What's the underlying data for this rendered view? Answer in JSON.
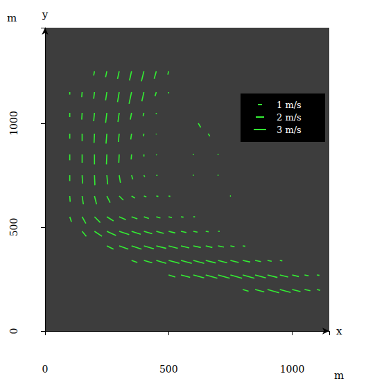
{
  "chart_data": {
    "type": "quiver",
    "x_label": "x",
    "y_label": "y",
    "x_unit": "m",
    "y_unit": "m",
    "xlim": [
      0,
      1150
    ],
    "ylim": [
      0,
      1460
    ],
    "xticks": [
      0,
      500,
      1000
    ],
    "yticks": [
      0,
      500,
      1000
    ],
    "grid": false,
    "color": "#33ee33",
    "scale_key": [
      {
        "label": "1 m/s",
        "value": 1
      },
      {
        "label": "2 m/s",
        "value": 2
      },
      {
        "label": "3 m/s",
        "value": 3
      }
    ],
    "vectors": [
      [
        200,
        1250,
        -0.2,
        -1.0
      ],
      [
        250,
        1250,
        -0.3,
        -1.4
      ],
      [
        300,
        1250,
        -0.4,
        -1.8
      ],
      [
        350,
        1250,
        -0.5,
        -2.2
      ],
      [
        400,
        1250,
        -0.6,
        -2.4
      ],
      [
        450,
        1250,
        -0.5,
        -1.8
      ],
      [
        500,
        1250,
        -0.2,
        -0.8
      ],
      [
        100,
        1150,
        0,
        -0.6
      ],
      [
        150,
        1150,
        -0.1,
        -1.2
      ],
      [
        200,
        1150,
        -0.2,
        -1.6
      ],
      [
        250,
        1150,
        -0.3,
        -2.0
      ],
      [
        300,
        1150,
        -0.4,
        -2.4
      ],
      [
        350,
        1150,
        -0.6,
        -2.8
      ],
      [
        400,
        1150,
        -0.5,
        -2.2
      ],
      [
        450,
        1150,
        -0.3,
        -1.0
      ],
      [
        500,
        1150,
        0,
        -0.3
      ],
      [
        100,
        1050,
        0,
        -1.0
      ],
      [
        150,
        1050,
        -0.1,
        -1.6
      ],
      [
        200,
        1050,
        -0.2,
        -2.0
      ],
      [
        250,
        1050,
        -0.3,
        -2.4
      ],
      [
        300,
        1050,
        -0.3,
        -2.2
      ],
      [
        350,
        1050,
        -0.3,
        -1.6
      ],
      [
        400,
        1050,
        -0.2,
        -0.8
      ],
      [
        450,
        1050,
        0,
        -0.3
      ],
      [
        100,
        950,
        0,
        -1.2
      ],
      [
        150,
        950,
        0,
        -1.8
      ],
      [
        200,
        950,
        -0.1,
        -2.2
      ],
      [
        250,
        950,
        -0.2,
        -2.4
      ],
      [
        300,
        950,
        -0.2,
        -2.0
      ],
      [
        350,
        950,
        -0.2,
        -1.4
      ],
      [
        400,
        950,
        -0.1,
        -0.6
      ],
      [
        450,
        950,
        0,
        -0.2
      ],
      [
        100,
        850,
        0,
        -1.4
      ],
      [
        150,
        850,
        0,
        -2.0
      ],
      [
        200,
        850,
        0,
        -2.4
      ],
      [
        250,
        850,
        -0.1,
        -2.4
      ],
      [
        300,
        850,
        -0.1,
        -2.0
      ],
      [
        350,
        850,
        -0.1,
        -1.2
      ],
      [
        400,
        850,
        0,
        -0.5
      ],
      [
        450,
        850,
        0.1,
        -0.2
      ],
      [
        100,
        750,
        0,
        -1.4
      ],
      [
        150,
        750,
        0.1,
        -2.0
      ],
      [
        200,
        750,
        0.1,
        -2.4
      ],
      [
        250,
        750,
        0.2,
        -2.2
      ],
      [
        300,
        750,
        0.3,
        -1.8
      ],
      [
        350,
        750,
        0.3,
        -1.0
      ],
      [
        400,
        750,
        0.2,
        -0.4
      ],
      [
        450,
        750,
        0.3,
        -0.1
      ],
      [
        100,
        650,
        0.1,
        -1.4
      ],
      [
        150,
        650,
        0.3,
        -2.0
      ],
      [
        200,
        650,
        0.5,
        -2.0
      ],
      [
        250,
        650,
        0.8,
        -1.6
      ],
      [
        300,
        650,
        1.0,
        -1.0
      ],
      [
        350,
        650,
        0.8,
        -0.5
      ],
      [
        400,
        650,
        0.6,
        -0.2
      ],
      [
        450,
        650,
        0.5,
        -0.1
      ],
      [
        500,
        650,
        0.4,
        -0.1
      ],
      [
        100,
        550,
        0.4,
        -1.2
      ],
      [
        150,
        550,
        0.9,
        -1.6
      ],
      [
        200,
        550,
        1.4,
        -1.4
      ],
      [
        250,
        550,
        1.6,
        -1.0
      ],
      [
        300,
        550,
        1.6,
        -0.7
      ],
      [
        350,
        550,
        1.4,
        -0.5
      ],
      [
        400,
        550,
        1.2,
        -0.4
      ],
      [
        450,
        550,
        1.0,
        -0.3
      ],
      [
        500,
        550,
        0.8,
        -0.2
      ],
      [
        550,
        550,
        0.6,
        -0.1
      ],
      [
        600,
        550,
        0.4,
        0
      ],
      [
        150,
        480,
        1.0,
        -1.2
      ],
      [
        200,
        480,
        1.8,
        -1.2
      ],
      [
        250,
        480,
        2.2,
        -1.0
      ],
      [
        300,
        480,
        2.4,
        -0.8
      ],
      [
        350,
        480,
        2.2,
        -0.7
      ],
      [
        400,
        480,
        2.0,
        -0.6
      ],
      [
        450,
        480,
        1.8,
        -0.5
      ],
      [
        500,
        480,
        1.6,
        -0.4
      ],
      [
        550,
        480,
        1.3,
        -0.3
      ],
      [
        600,
        480,
        1.0,
        -0.2
      ],
      [
        650,
        480,
        0.7,
        -0.1
      ],
      [
        700,
        480,
        0.4,
        0
      ],
      [
        250,
        410,
        1.6,
        -0.8
      ],
      [
        300,
        410,
        2.2,
        -0.8
      ],
      [
        350,
        410,
        2.4,
        -0.8
      ],
      [
        400,
        410,
        2.4,
        -0.7
      ],
      [
        450,
        410,
        2.4,
        -0.6
      ],
      [
        500,
        410,
        2.2,
        -0.6
      ],
      [
        550,
        410,
        2.0,
        -0.5
      ],
      [
        600,
        410,
        1.8,
        -0.4
      ],
      [
        650,
        410,
        1.6,
        -0.4
      ],
      [
        700,
        410,
        1.4,
        -0.3
      ],
      [
        750,
        410,
        1.0,
        -0.2
      ],
      [
        800,
        410,
        0.6,
        -0.1
      ],
      [
        350,
        340,
        1.4,
        -0.5
      ],
      [
        400,
        340,
        2.0,
        -0.6
      ],
      [
        450,
        340,
        2.4,
        -0.7
      ],
      [
        500,
        340,
        2.6,
        -0.7
      ],
      [
        550,
        340,
        2.6,
        -0.7
      ],
      [
        600,
        340,
        2.6,
        -0.7
      ],
      [
        650,
        340,
        2.4,
        -0.6
      ],
      [
        700,
        340,
        2.2,
        -0.6
      ],
      [
        750,
        340,
        2.0,
        -0.5
      ],
      [
        800,
        340,
        1.8,
        -0.4
      ],
      [
        850,
        340,
        1.4,
        -0.3
      ],
      [
        900,
        340,
        1.0,
        -0.2
      ],
      [
        950,
        340,
        0.6,
        -0.1
      ],
      [
        500,
        270,
        1.6,
        -0.5
      ],
      [
        550,
        270,
        2.2,
        -0.6
      ],
      [
        600,
        270,
        2.6,
        -0.7
      ],
      [
        650,
        270,
        2.8,
        -0.8
      ],
      [
        700,
        270,
        2.8,
        -0.8
      ],
      [
        750,
        270,
        2.8,
        -0.8
      ],
      [
        800,
        270,
        2.8,
        -0.8
      ],
      [
        850,
        270,
        2.6,
        -0.7
      ],
      [
        900,
        270,
        2.4,
        -0.6
      ],
      [
        950,
        270,
        2.0,
        -0.5
      ],
      [
        1000,
        270,
        1.6,
        -0.4
      ],
      [
        1050,
        270,
        1.0,
        -0.2
      ],
      [
        1100,
        270,
        0.6,
        -0.1
      ],
      [
        800,
        200,
        1.4,
        -0.4
      ],
      [
        850,
        200,
        2.2,
        -0.6
      ],
      [
        900,
        200,
        2.8,
        -0.8
      ],
      [
        950,
        200,
        2.6,
        -0.7
      ],
      [
        1000,
        200,
        2.0,
        -0.5
      ],
      [
        1050,
        200,
        1.4,
        -0.3
      ],
      [
        1100,
        200,
        0.8,
        -0.2
      ],
      [
        620,
        1000,
        0.6,
        -1.0
      ],
      [
        660,
        950,
        0.4,
        -0.6
      ],
      [
        600,
        850,
        0.1,
        0
      ],
      [
        700,
        850,
        0.1,
        0
      ],
      [
        600,
        750,
        0.1,
        0
      ],
      [
        700,
        750,
        0.1,
        0
      ],
      [
        750,
        650,
        0.1,
        0
      ]
    ]
  }
}
